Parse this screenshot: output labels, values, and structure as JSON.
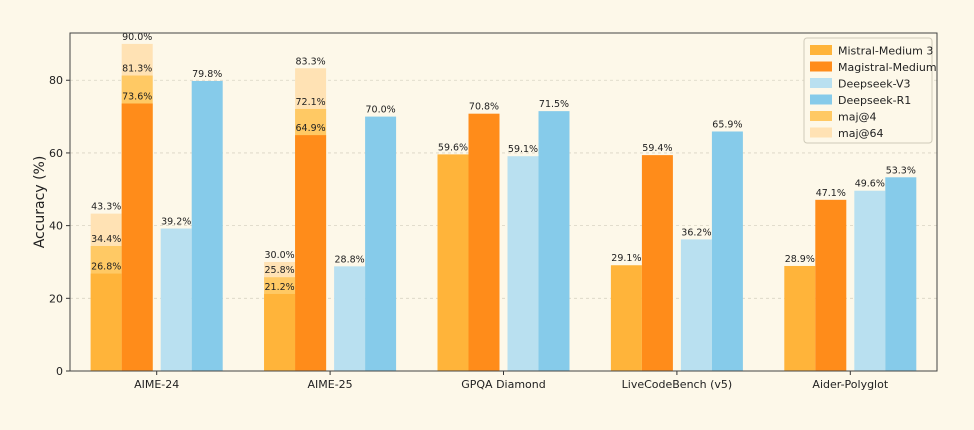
{
  "chart_data": {
    "type": "bar",
    "ylabel": "Accuracy (%)",
    "ylim": [
      0,
      93
    ],
    "yticks": [
      0,
      20,
      40,
      60,
      80
    ],
    "grid": true,
    "legend_position": "top-right",
    "categories": [
      "AIME-24",
      "AIME-25",
      "GPQA Diamond",
      "LiveCodeBench (v5)",
      "Aider-Polyglot"
    ],
    "series": [
      {
        "name": "Mistral-Medium 3",
        "color": "#ffb43a",
        "values": [
          26.8,
          21.2,
          59.6,
          29.1,
          28.9
        ],
        "maj4": [
          34.4,
          25.8,
          null,
          null,
          null
        ],
        "maj64": [
          43.3,
          30.0,
          null,
          null,
          null
        ]
      },
      {
        "name": "Magistral-Medium",
        "color": "#ff8c1a",
        "values": [
          73.6,
          64.9,
          70.8,
          59.4,
          47.1
        ],
        "maj4": [
          81.3,
          72.1,
          null,
          null,
          null
        ],
        "maj64": [
          90.0,
          83.3,
          null,
          null,
          null
        ]
      },
      {
        "name": "Deepseek-V3",
        "color": "#b9e0f0",
        "values": [
          39.2,
          28.8,
          59.1,
          36.2,
          49.6
        ]
      },
      {
        "name": "Deepseek-R1",
        "color": "#86cbea",
        "values": [
          79.8,
          70.0,
          71.5,
          65.9,
          53.3
        ]
      }
    ],
    "overlays": [
      {
        "name": "maj@4",
        "color": "#ffc964"
      },
      {
        "name": "maj@64",
        "color": "#ffe2b4"
      }
    ],
    "value_labels": {
      "0": [
        "26.8%",
        "21.2%",
        "59.6%",
        "29.1%",
        "28.9%"
      ],
      "1": [
        "73.6%",
        "64.9%",
        "70.8%",
        "59.4%",
        "47.1%"
      ],
      "2": [
        "39.2%",
        "28.8%",
        "59.1%",
        "36.2%",
        "49.6%"
      ],
      "3": [
        "79.8%",
        "70.0%",
        "71.5%",
        "65.9%",
        "53.3%"
      ],
      "0_maj4": [
        "34.4%",
        "25.8%",
        "",
        "",
        ""
      ],
      "0_maj64": [
        "43.3%",
        "30.0%",
        "",
        "",
        ""
      ],
      "1_maj4": [
        "81.3%",
        "72.1%",
        "",
        "",
        ""
      ],
      "1_maj64": [
        "90.0%",
        "83.3%",
        "",
        "",
        ""
      ]
    }
  }
}
